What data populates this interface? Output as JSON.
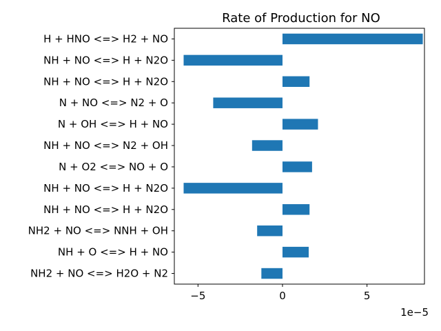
{
  "chart_data": {
    "type": "bar",
    "orientation": "horizontal",
    "title": "Rate of Production for NO",
    "xlabel": "",
    "ylabel": "",
    "offset_label": "1e−5",
    "xlim": [
      -6.4,
      8.4
    ],
    "xticks": [
      -5,
      0,
      5
    ],
    "xtick_labels": [
      "−5",
      "0",
      "5"
    ],
    "grid": false,
    "categories": [
      "H + HNO <=> H2 + NO",
      "NH + NO <=> H + N2O",
      "NH + NO <=> H + N2O",
      "N + NO <=> N2 + O",
      "N + OH <=> H + NO",
      "NH + NO <=> N2 + OH",
      "N + O2 <=> NO + O",
      "NH + NO <=> H + N2O",
      "NH + NO <=> H + N2O",
      "NH2 + NO <=> NNH + OH",
      "NH + O <=> H + NO",
      "NH2 + NO <=> H2O + N2"
    ],
    "values": [
      8.3,
      -5.85,
      1.6,
      -4.1,
      2.1,
      -1.8,
      1.75,
      -5.85,
      1.6,
      -1.5,
      1.55,
      -1.25
    ],
    "value_scale": 1e-05,
    "bar_color": "#1f77b4"
  }
}
